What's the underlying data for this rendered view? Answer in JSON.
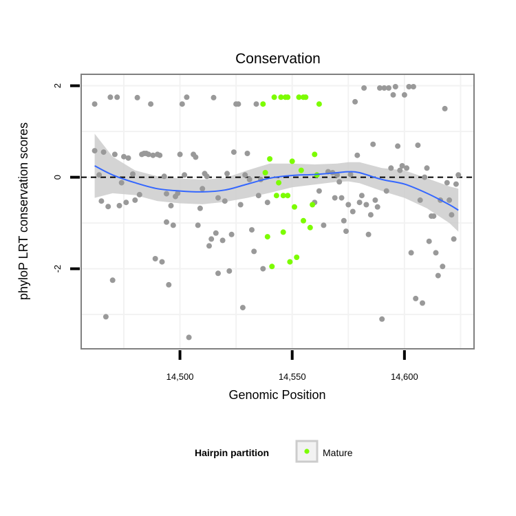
{
  "chart_data": {
    "type": "scatter",
    "title": "Conservation",
    "xlabel": "Genomic Position",
    "ylabel": "phyloP LRT conservation scores",
    "xlim": [
      14456,
      14631
    ],
    "ylim": [
      -3.75,
      2.25
    ],
    "x_ticks": [
      14500,
      14550,
      14600
    ],
    "x_tick_labels": [
      "14,500",
      "14,550",
      "14,600"
    ],
    "y_ticks": [
      -2,
      0,
      2
    ],
    "y_tick_labels": [
      "-2",
      "0",
      "2"
    ],
    "reference_line": {
      "y": 0,
      "style": "dashed",
      "color": "#000000"
    },
    "grid": true,
    "legend": {
      "title": "Hairpin partition",
      "position": "bottom",
      "entries": [
        {
          "label": "Mature",
          "color": "#7cfc00"
        }
      ]
    },
    "series": [
      {
        "color": "#999999",
        "points": [
          [
            14462,
            1.6
          ],
          [
            14462,
            0.58
          ],
          [
            14464,
            0.05
          ],
          [
            14465,
            -0.52
          ],
          [
            14466,
            0.55
          ],
          [
            14467,
            -3.05
          ],
          [
            14468,
            -0.64
          ],
          [
            14469,
            1.75
          ],
          [
            14470,
            -2.25
          ],
          [
            14471,
            0.5
          ],
          [
            14472,
            1.75
          ],
          [
            14473,
            -0.62
          ],
          [
            14474,
            -0.12
          ],
          [
            14475,
            0.45
          ],
          [
            14476,
            -0.55
          ],
          [
            14477,
            0.42
          ],
          [
            14479,
            0.07
          ],
          [
            14480,
            -0.5
          ],
          [
            14481,
            1.74
          ],
          [
            14482,
            -0.38
          ],
          [
            14483,
            0.5
          ],
          [
            14484,
            0.52
          ],
          [
            14485,
            0.52
          ],
          [
            14486,
            0.5
          ],
          [
            14487,
            1.6
          ],
          [
            14488,
            0.48
          ],
          [
            14489,
            -1.78
          ],
          [
            14490,
            0.5
          ],
          [
            14491,
            0.48
          ],
          [
            14492,
            -1.85
          ],
          [
            14493,
            0.02
          ],
          [
            14494,
            -0.36
          ],
          [
            14494,
            -0.98
          ],
          [
            14495,
            -2.35
          ],
          [
            14496,
            -0.62
          ],
          [
            14497,
            -1.05
          ],
          [
            14498,
            -0.42
          ],
          [
            14499,
            -0.35
          ],
          [
            14500,
            0.5
          ],
          [
            14501,
            1.6
          ],
          [
            14502,
            0.05
          ],
          [
            14503,
            1.75
          ],
          [
            14504,
            -3.5
          ],
          [
            14506,
            0.5
          ],
          [
            14507,
            0.44
          ],
          [
            14508,
            -1.05
          ],
          [
            14509,
            -0.68
          ],
          [
            14510,
            -0.25
          ],
          [
            14511,
            0.08
          ],
          [
            14512,
            0.02
          ],
          [
            14513,
            -1.5
          ],
          [
            14514,
            -1.35
          ],
          [
            14515,
            1.74
          ],
          [
            14516,
            -1.22
          ],
          [
            14517,
            -0.45
          ],
          [
            14517,
            -2.1
          ],
          [
            14519,
            -1.38
          ],
          [
            14520,
            -0.52
          ],
          [
            14521,
            0.08
          ],
          [
            14522,
            -2.05
          ],
          [
            14523,
            -1.25
          ],
          [
            14524,
            0.55
          ],
          [
            14525,
            1.6
          ],
          [
            14526,
            1.6
          ],
          [
            14527,
            -0.6
          ],
          [
            14528,
            -2.85
          ],
          [
            14529,
            0.05
          ],
          [
            14530,
            0.52
          ],
          [
            14531,
            -0.05
          ],
          [
            14532,
            -1.15
          ],
          [
            14533,
            -1.62
          ],
          [
            14534,
            1.6
          ],
          [
            14535,
            -0.4
          ],
          [
            14536,
            -0.05
          ],
          [
            14537,
            -2.0
          ],
          [
            14539,
            -0.55
          ],
          [
            14560,
            -0.55
          ],
          [
            14562,
            -0.3
          ],
          [
            14564,
            -1.05
          ],
          [
            14566,
            0.12
          ],
          [
            14568,
            0.1
          ],
          [
            14569,
            -0.45
          ],
          [
            14570,
            0.05
          ],
          [
            14571,
            -0.1
          ],
          [
            14572,
            -0.45
          ],
          [
            14573,
            -0.95
          ],
          [
            14574,
            -1.18
          ],
          [
            14575,
            -0.6
          ],
          [
            14576,
            0.06
          ],
          [
            14577,
            -0.75
          ],
          [
            14578,
            1.65
          ],
          [
            14579,
            0.48
          ],
          [
            14580,
            -0.55
          ],
          [
            14581,
            -0.4
          ],
          [
            14582,
            1.95
          ],
          [
            14583,
            -0.6
          ],
          [
            14584,
            -1.25
          ],
          [
            14585,
            -0.82
          ],
          [
            14586,
            0.72
          ],
          [
            14587,
            -0.5
          ],
          [
            14588,
            -0.65
          ],
          [
            14589,
            1.95
          ],
          [
            14590,
            -3.1
          ],
          [
            14591,
            1.95
          ],
          [
            14592,
            -0.3
          ],
          [
            14593,
            1.95
          ],
          [
            14594,
            0.2
          ],
          [
            14595,
            1.8
          ],
          [
            14596,
            1.98
          ],
          [
            14597,
            0.68
          ],
          [
            14598,
            0.15
          ],
          [
            14599,
            0.25
          ],
          [
            14600,
            1.8
          ],
          [
            14601,
            0.2
          ],
          [
            14602,
            1.98
          ],
          [
            14603,
            -1.65
          ],
          [
            14604,
            1.98
          ],
          [
            14605,
            -2.65
          ],
          [
            14606,
            0.7
          ],
          [
            14607,
            -0.5
          ],
          [
            14608,
            -2.75
          ],
          [
            14609,
            0.0
          ],
          [
            14610,
            0.2
          ],
          [
            14611,
            -1.4
          ],
          [
            14612,
            -0.85
          ],
          [
            14613,
            -0.85
          ],
          [
            14614,
            -1.65
          ],
          [
            14615,
            -2.15
          ],
          [
            14616,
            -0.5
          ],
          [
            14617,
            -1.95
          ],
          [
            14618,
            1.5
          ],
          [
            14619,
            -0.12
          ],
          [
            14620,
            -0.5
          ],
          [
            14621,
            -0.82
          ],
          [
            14622,
            -1.35
          ],
          [
            14623,
            -0.15
          ],
          [
            14624,
            0.05
          ]
        ]
      },
      {
        "name": "Mature",
        "color": "#7cfc00",
        "points": [
          [
            14537,
            1.6
          ],
          [
            14538,
            0.1
          ],
          [
            14539,
            -1.3
          ],
          [
            14540,
            0.4
          ],
          [
            14541,
            -1.95
          ],
          [
            14542,
            1.75
          ],
          [
            14543,
            -0.4
          ],
          [
            14544,
            -0.12
          ],
          [
            14545,
            1.75
          ],
          [
            14546,
            -0.4
          ],
          [
            14546,
            -1.2
          ],
          [
            14547,
            1.75
          ],
          [
            14548,
            -0.4
          ],
          [
            14548,
            1.75
          ],
          [
            14549,
            -1.85
          ],
          [
            14550,
            0.35
          ],
          [
            14551,
            -0.65
          ],
          [
            14552,
            -1.75
          ],
          [
            14553,
            1.75
          ],
          [
            14554,
            0.15
          ],
          [
            14555,
            -0.95
          ],
          [
            14555,
            1.75
          ],
          [
            14556,
            1.75
          ],
          [
            14558,
            -1.1
          ],
          [
            14559,
            -0.6
          ],
          [
            14560,
            0.5
          ],
          [
            14561,
            0.05
          ],
          [
            14562,
            1.6
          ]
        ]
      }
    ],
    "smooth": {
      "type": "loess",
      "color": "#3366ff",
      "band_color": "#cccccc",
      "x": [
        14462,
        14470,
        14480,
        14490,
        14500,
        14510,
        14520,
        14530,
        14540,
        14550,
        14560,
        14570,
        14575,
        14580,
        14590,
        14600,
        14610,
        14620,
        14624
      ],
      "y": [
        0.25,
        0.05,
        -0.12,
        -0.25,
        -0.3,
        -0.32,
        -0.28,
        -0.15,
        -0.02,
        0.04,
        0.06,
        0.1,
        0.12,
        0.1,
        -0.05,
        -0.15,
        -0.35,
        -0.6,
        -0.72
      ],
      "upper": [
        0.95,
        0.45,
        0.15,
        0.02,
        -0.03,
        -0.05,
        -0.02,
        0.15,
        0.3,
        0.3,
        0.28,
        0.3,
        0.33,
        0.33,
        0.2,
        0.15,
        -0.02,
        -0.2,
        -0.25
      ],
      "lower": [
        -0.45,
        -0.35,
        -0.39,
        -0.52,
        -0.57,
        -0.59,
        -0.54,
        -0.45,
        -0.34,
        -0.22,
        -0.16,
        -0.1,
        -0.09,
        -0.13,
        -0.3,
        -0.45,
        -0.68,
        -1.0,
        -1.19
      ]
    }
  }
}
